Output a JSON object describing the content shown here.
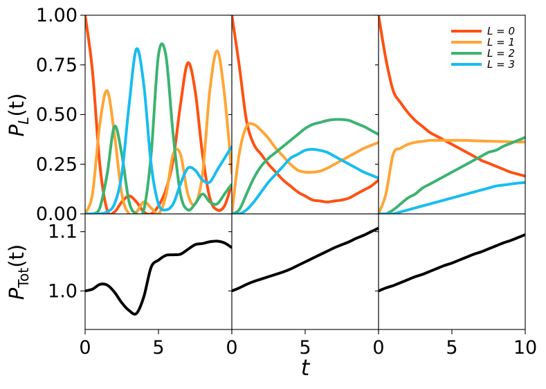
{
  "chart_data": {
    "type": "line",
    "layout": "2 rows x 3 columns, shared x axis per column, shared y axis per row",
    "xlabel": "t",
    "xlim": [
      0,
      10
    ],
    "x_ticks": [
      0,
      5,
      10
    ],
    "x_tick_labels": [
      "0",
      "5",
      "10"
    ],
    "legend": {
      "placement": "top-right of top-right panel",
      "entries": [
        {
          "label": "L = 0",
          "color": "#ff5010"
        },
        {
          "label": "L = 1",
          "color": "#ffa535"
        },
        {
          "label": "L = 2",
          "color": "#3cb371"
        },
        {
          "label": "L = 3",
          "color": "#17bdf0"
        }
      ]
    },
    "rows": [
      {
        "ylabel_main": "P",
        "ylabel_sub": "L",
        "ylabel_arg": "(t)",
        "ylim": [
          0,
          1
        ],
        "y_ticks": [
          0,
          0.25,
          0.5,
          0.75,
          1.0
        ],
        "y_tick_labels": [
          "0.00",
          "0.25",
          "0.50",
          "0.75",
          "1.00"
        ],
        "panels": [
          {
            "series": [
              {
                "name": "L = 0",
                "color": "#ff5010",
                "x": [
                  0,
                  0.5,
                  1.0,
                  1.5,
                  2.0,
                  2.5,
                  3.0,
                  3.5,
                  4.0,
                  4.5,
                  5.0,
                  5.5,
                  6.0,
                  6.5,
                  7.0,
                  7.5,
                  8.0,
                  8.5,
                  9.0,
                  9.5,
                  10.0
                ],
                "y": [
                  1.0,
                  0.72,
                  0.25,
                  0.02,
                  0.01,
                  0.06,
                  0.09,
                  0.06,
                  0.01,
                  0.0,
                  0.04,
                  0.12,
                  0.27,
                  0.55,
                  0.76,
                  0.62,
                  0.3,
                  0.08,
                  0.02,
                  0.04,
                  0.15
                ]
              },
              {
                "name": "L = 1",
                "color": "#ffa535",
                "x": [
                  0,
                  0.5,
                  1.0,
                  1.5,
                  2.0,
                  2.5,
                  3.0,
                  3.5,
                  4.0,
                  4.5,
                  5.0,
                  5.5,
                  6.0,
                  6.5,
                  7.0,
                  7.5,
                  8.0,
                  8.5,
                  9.0,
                  9.5,
                  10.0
                ],
                "y": [
                  0.0,
                  0.1,
                  0.45,
                  0.62,
                  0.4,
                  0.1,
                  0.0,
                  0.01,
                  0.06,
                  0.03,
                  0.0,
                  0.09,
                  0.3,
                  0.3,
                  0.1,
                  0.05,
                  0.2,
                  0.62,
                  0.82,
                  0.6,
                  0.2
                ]
              },
              {
                "name": "L = 2",
                "color": "#3cb371",
                "x": [
                  0,
                  0.5,
                  1.0,
                  1.5,
                  2.0,
                  2.5,
                  3.0,
                  3.5,
                  4.0,
                  4.5,
                  5.0,
                  5.5,
                  6.0,
                  6.5,
                  7.0,
                  7.5,
                  8.0,
                  8.5,
                  9.0,
                  9.5,
                  10.0
                ],
                "y": [
                  0.0,
                  0.0,
                  0.03,
                  0.2,
                  0.44,
                  0.3,
                  0.06,
                  0.0,
                  0.02,
                  0.3,
                  0.8,
                  0.8,
                  0.4,
                  0.1,
                  0.02,
                  0.05,
                  0.1,
                  0.06,
                  0.05,
                  0.1,
                  0.15
                ]
              },
              {
                "name": "L = 3",
                "color": "#17bdf0",
                "x": [
                  0,
                  0.5,
                  1.0,
                  1.5,
                  2.0,
                  2.5,
                  3.0,
                  3.5,
                  4.0,
                  4.5,
                  5.0,
                  5.5,
                  6.0,
                  6.5,
                  7.0,
                  7.5,
                  8.0,
                  8.5,
                  9.0,
                  9.5,
                  10.0
                ],
                "y": [
                  0.0,
                  0.0,
                  0.0,
                  0.01,
                  0.05,
                  0.2,
                  0.55,
                  0.83,
                  0.65,
                  0.25,
                  0.05,
                  0.02,
                  0.05,
                  0.15,
                  0.23,
                  0.22,
                  0.17,
                  0.16,
                  0.22,
                  0.28,
                  0.34
                ]
              }
            ]
          },
          {
            "series": [
              {
                "name": "L = 0",
                "color": "#ff5010",
                "x": [
                  0,
                  0.5,
                  1.0,
                  1.5,
                  2.0,
                  2.5,
                  3.0,
                  3.5,
                  4.0,
                  4.5,
                  5.0,
                  5.5,
                  6.0,
                  6.5,
                  7.0,
                  7.5,
                  8.0,
                  8.5,
                  9.0,
                  9.5,
                  10.0
                ],
                "y": [
                  1.0,
                  0.75,
                  0.47,
                  0.35,
                  0.3,
                  0.25,
                  0.21,
                  0.17,
                  0.14,
                  0.11,
                  0.09,
                  0.07,
                  0.065,
                  0.06,
                  0.065,
                  0.07,
                  0.08,
                  0.1,
                  0.12,
                  0.14,
                  0.17
                ]
              },
              {
                "name": "L = 1",
                "color": "#ffa535",
                "x": [
                  0,
                  0.5,
                  1.0,
                  1.5,
                  2.0,
                  2.5,
                  3.0,
                  3.5,
                  4.0,
                  4.5,
                  5.0,
                  5.5,
                  6.0,
                  6.5,
                  7.0,
                  7.5,
                  8.0,
                  8.5,
                  9.0,
                  9.5,
                  10.0
                ],
                "y": [
                  0.0,
                  0.3,
                  0.44,
                  0.45,
                  0.42,
                  0.38,
                  0.33,
                  0.29,
                  0.25,
                  0.22,
                  0.21,
                  0.21,
                  0.215,
                  0.23,
                  0.25,
                  0.27,
                  0.29,
                  0.31,
                  0.33,
                  0.345,
                  0.36
                ]
              },
              {
                "name": "L = 2",
                "color": "#3cb371",
                "x": [
                  0,
                  0.5,
                  1.0,
                  1.5,
                  2.0,
                  2.5,
                  3.0,
                  3.5,
                  4.0,
                  4.5,
                  5.0,
                  5.5,
                  6.0,
                  6.5,
                  7.0,
                  7.5,
                  8.0,
                  8.5,
                  9.0,
                  9.5,
                  10.0
                ],
                "y": [
                  0.0,
                  0.02,
                  0.1,
                  0.18,
                  0.24,
                  0.28,
                  0.31,
                  0.34,
                  0.37,
                  0.4,
                  0.43,
                  0.45,
                  0.46,
                  0.47,
                  0.475,
                  0.475,
                  0.47,
                  0.455,
                  0.44,
                  0.42,
                  0.4
                ]
              },
              {
                "name": "L = 3",
                "color": "#17bdf0",
                "x": [
                  0,
                  0.5,
                  1.0,
                  1.5,
                  2.0,
                  2.5,
                  3.0,
                  3.5,
                  4.0,
                  4.5,
                  5.0,
                  5.5,
                  6.0,
                  6.5,
                  7.0,
                  7.5,
                  8.0,
                  8.5,
                  9.0,
                  9.5,
                  10.0
                ],
                "y": [
                  0.0,
                  0.0,
                  0.02,
                  0.06,
                  0.11,
                  0.16,
                  0.2,
                  0.24,
                  0.28,
                  0.3,
                  0.32,
                  0.325,
                  0.32,
                  0.31,
                  0.29,
                  0.27,
                  0.25,
                  0.23,
                  0.21,
                  0.195,
                  0.18
                ]
              }
            ]
          },
          {
            "series": [
              {
                "name": "L = 0",
                "color": "#ff5010",
                "x": [
                  0,
                  0.5,
                  1.0,
                  1.5,
                  2.0,
                  2.5,
                  3.0,
                  3.5,
                  4.0,
                  4.5,
                  5.0,
                  5.5,
                  6.0,
                  6.5,
                  7.0,
                  7.5,
                  8.0,
                  8.5,
                  9.0,
                  9.5,
                  10.0
                ],
                "y": [
                  1.0,
                  0.78,
                  0.62,
                  0.56,
                  0.51,
                  0.47,
                  0.44,
                  0.41,
                  0.39,
                  0.37,
                  0.35,
                  0.33,
                  0.31,
                  0.29,
                  0.27,
                  0.255,
                  0.24,
                  0.225,
                  0.21,
                  0.2,
                  0.19
                ]
              },
              {
                "name": "L = 1",
                "color": "#ffa535",
                "x": [
                  0,
                  0.5,
                  1.0,
                  1.5,
                  2.0,
                  2.5,
                  3.0,
                  3.5,
                  4.0,
                  4.5,
                  5.0,
                  5.5,
                  6.0,
                  6.5,
                  7.0,
                  7.5,
                  8.0,
                  8.5,
                  9.0,
                  9.5,
                  10.0
                ],
                "y": [
                  0.0,
                  0.1,
                  0.3,
                  0.33,
                  0.35,
                  0.36,
                  0.365,
                  0.37,
                  0.37,
                  0.37,
                  0.37,
                  0.37,
                  0.37,
                  0.368,
                  0.367,
                  0.366,
                  0.365,
                  0.364,
                  0.363,
                  0.362,
                  0.362
                ]
              },
              {
                "name": "L = 2",
                "color": "#3cb371",
                "x": [
                  0,
                  0.5,
                  1.0,
                  1.5,
                  2.0,
                  2.5,
                  3.0,
                  3.5,
                  4.0,
                  4.5,
                  5.0,
                  5.5,
                  6.0,
                  6.5,
                  7.0,
                  7.5,
                  8.0,
                  8.5,
                  9.0,
                  9.5,
                  10.0
                ],
                "y": [
                  0.0,
                  0.0,
                  0.02,
                  0.05,
                  0.08,
                  0.1,
                  0.13,
                  0.15,
                  0.17,
                  0.19,
                  0.21,
                  0.23,
                  0.25,
                  0.27,
                  0.29,
                  0.31,
                  0.32,
                  0.34,
                  0.355,
                  0.37,
                  0.385
                ]
              },
              {
                "name": "L = 3",
                "color": "#17bdf0",
                "x": [
                  0,
                  0.5,
                  1.0,
                  1.5,
                  2.0,
                  2.5,
                  3.0,
                  3.5,
                  4.0,
                  4.5,
                  5.0,
                  5.5,
                  6.0,
                  6.5,
                  7.0,
                  7.5,
                  8.0,
                  8.5,
                  9.0,
                  9.5,
                  10.0
                ],
                "y": [
                  0.0,
                  0.0,
                  0.0,
                  0.01,
                  0.02,
                  0.03,
                  0.04,
                  0.05,
                  0.06,
                  0.07,
                  0.08,
                  0.09,
                  0.1,
                  0.11,
                  0.12,
                  0.13,
                  0.14,
                  0.145,
                  0.15,
                  0.155,
                  0.158
                ]
              }
            ]
          }
        ]
      },
      {
        "ylabel_main": "P",
        "ylabel_sub": "Tot",
        "ylabel_arg": "(t)",
        "ylim": [
          0.935,
          1.13
        ],
        "y_ticks": [
          1.0,
          1.1
        ],
        "y_tick_labels": [
          "1.0",
          "1.1"
        ],
        "panels": [
          {
            "series": [
              {
                "color": "#000000",
                "x": [
                  0,
                  0.5,
                  1.0,
                  1.5,
                  2.0,
                  2.5,
                  3.0,
                  3.5,
                  4.0,
                  4.5,
                  5.0,
                  5.5,
                  6.0,
                  6.5,
                  7.0,
                  7.5,
                  8.0,
                  8.5,
                  9.0,
                  9.5,
                  10.0
                ],
                "y": [
                  1.0,
                  1.003,
                  1.011,
                  1.01,
                  0.998,
                  0.98,
                  0.967,
                  0.962,
                  0.99,
                  1.04,
                  1.052,
                  1.06,
                  1.061,
                  1.062,
                  1.07,
                  1.078,
                  1.08,
                  1.083,
                  1.084,
                  1.081,
                  1.073
                ]
              }
            ]
          },
          {
            "series": [
              {
                "color": "#000000",
                "x": [
                  0,
                  0.5,
                  1.0,
                  1.5,
                  2.0,
                  2.5,
                  3.0,
                  3.5,
                  4.0,
                  4.5,
                  5.0,
                  5.5,
                  6.0,
                  6.5,
                  7.0,
                  7.5,
                  8.0,
                  8.5,
                  9.0,
                  9.5,
                  10.0
                ],
                "y": [
                  1.0,
                  1.005,
                  1.011,
                  1.016,
                  1.02,
                  1.024,
                  1.028,
                  1.032,
                  1.037,
                  1.043,
                  1.049,
                  1.055,
                  1.061,
                  1.067,
                  1.073,
                  1.078,
                  1.083,
                  1.089,
                  1.094,
                  1.1,
                  1.106
                ]
              }
            ]
          },
          {
            "series": [
              {
                "color": "#000000",
                "x": [
                  0,
                  0.5,
                  1.0,
                  1.5,
                  2.0,
                  2.5,
                  3.0,
                  3.5,
                  4.0,
                  4.5,
                  5.0,
                  5.5,
                  6.0,
                  6.5,
                  7.0,
                  7.5,
                  8.0,
                  8.5,
                  9.0,
                  9.5,
                  10.0
                ],
                "y": [
                  1.0,
                  1.005,
                  1.009,
                  1.014,
                  1.019,
                  1.024,
                  1.028,
                  1.033,
                  1.038,
                  1.043,
                  1.047,
                  1.052,
                  1.057,
                  1.062,
                  1.066,
                  1.071,
                  1.076,
                  1.081,
                  1.085,
                  1.09,
                  1.095
                ]
              }
            ]
          }
        ]
      }
    ]
  }
}
